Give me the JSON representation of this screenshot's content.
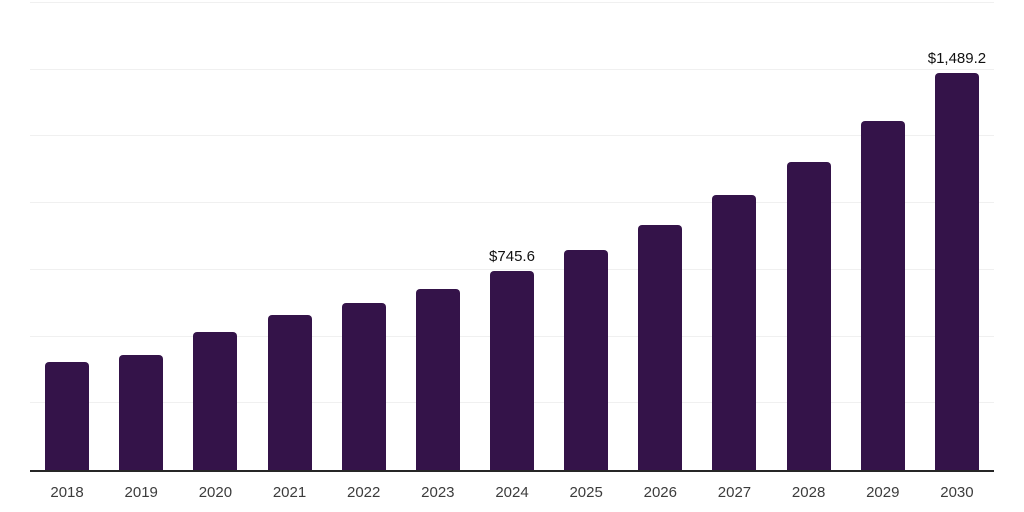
{
  "page": {
    "background_color": "#ffffff"
  },
  "chart_data": {
    "type": "bar",
    "title": "",
    "xlabel": "",
    "ylabel": "",
    "categories": [
      "2018",
      "2019",
      "2020",
      "2021",
      "2022",
      "2023",
      "2024",
      "2025",
      "2026",
      "2027",
      "2028",
      "2029",
      "2030"
    ],
    "values": [
      406,
      431,
      516,
      580,
      626,
      679,
      745.6,
      824,
      918,
      1029,
      1156,
      1309,
      1489.2
    ],
    "data_labels": [
      "",
      "",
      "",
      "",
      "",
      "",
      "$745.6",
      "",
      "",
      "",
      "",
      "",
      "$1,489.2"
    ],
    "ylim": [
      0,
      1750
    ],
    "grid_step": 250,
    "grid": true,
    "y_tick_labels_visible": false,
    "legend_position": "none",
    "bar_color": "#341349",
    "gridline_color": "#f0f0f0",
    "axis_line_color": "#262626",
    "value_label_color": "#111111",
    "tick_label_color": "#3c3c3c"
  }
}
